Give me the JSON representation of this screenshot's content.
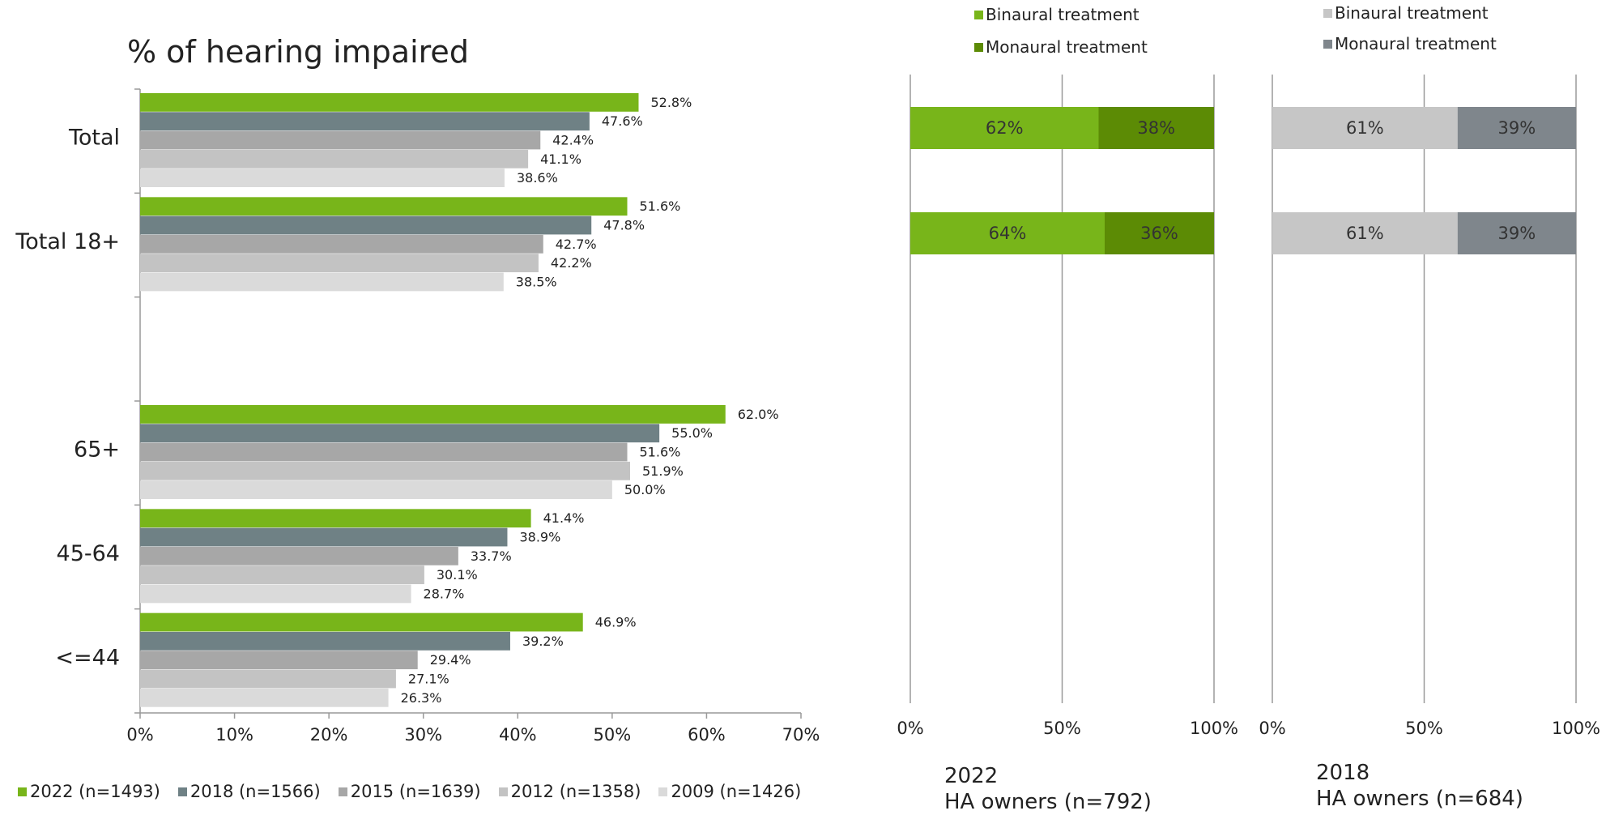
{
  "page": {
    "title": "% of hearing impaired"
  },
  "colors": {
    "s2022": "#78b51a",
    "s2018": "#6f8185",
    "s2015": "#a7a7a7",
    "s2012": "#c3c3c3",
    "s2009": "#dadada",
    "binaural2022": "#78b51a",
    "monaural2022": "#5c8b05",
    "binaural2018": "#c6c6c6",
    "monaural2018": "#7f868c",
    "axis": "#999999",
    "grid": "#9a9a9a"
  },
  "chart_data": [
    {
      "type": "bar",
      "orientation": "horizontal",
      "title": "% of hearing impaired",
      "categories": [
        "Total",
        "Total 18+",
        "",
        "65+",
        "45-64",
        "<=44"
      ],
      "xlim": [
        0,
        70
      ],
      "xticks": [
        "0%",
        "10%",
        "20%",
        "30%",
        "40%",
        "50%",
        "60%",
        "70%"
      ],
      "legend_position": "bottom",
      "series": [
        {
          "name": "2022 (n=1493)",
          "values": [
            52.8,
            51.6,
            null,
            62.0,
            41.4,
            46.9
          ],
          "labels": [
            "52.8%",
            "51.6%",
            "",
            "62.0%",
            "41.4%",
            "46.9%"
          ]
        },
        {
          "name": "2018 (n=1566)",
          "values": [
            47.6,
            47.8,
            null,
            55.0,
            38.9,
            39.2
          ],
          "labels": [
            "47.6%",
            "47.8%",
            "",
            "55.0%",
            "38.9%",
            "39.2%"
          ]
        },
        {
          "name": "2015 (n=1639)",
          "values": [
            42.4,
            42.7,
            null,
            51.6,
            33.7,
            29.4
          ],
          "labels": [
            "42.4%",
            "42.7%",
            "",
            "51.6%",
            "33.7%",
            "29.4%"
          ]
        },
        {
          "name": "2012 (n=1358)",
          "values": [
            41.1,
            42.2,
            null,
            51.9,
            30.1,
            27.1
          ],
          "labels": [
            "41.1%",
            "42.2%",
            "",
            "51.9%",
            "30.1%",
            "27.1%"
          ]
        },
        {
          "name": "2009 (n=1426)",
          "values": [
            38.6,
            38.5,
            null,
            50.0,
            28.7,
            26.3
          ],
          "labels": [
            "38.6%",
            "38.5%",
            "",
            "50.0%",
            "28.7%",
            "26.3%"
          ]
        }
      ]
    },
    {
      "type": "bar",
      "stacked": true,
      "orientation": "horizontal",
      "caption_year": "2022",
      "caption_group": "HA owners (n=792)",
      "xlim": [
        0,
        100
      ],
      "xticks": [
        "0%",
        "50%",
        "100%"
      ],
      "legend_position": "top",
      "rows": 2,
      "series": [
        {
          "name": "Binaural treatment",
          "values": [
            62,
            64
          ],
          "labels": [
            "62%",
            "64%"
          ]
        },
        {
          "name": "Monaural treatment",
          "values": [
            38,
            36
          ],
          "labels": [
            "38%",
            "36%"
          ]
        }
      ]
    },
    {
      "type": "bar",
      "stacked": true,
      "orientation": "horizontal",
      "caption_year": "2018",
      "caption_group": "HA owners (n=684)",
      "xlim": [
        0,
        100
      ],
      "xticks": [
        "0%",
        "50%",
        "100%"
      ],
      "legend_position": "top",
      "rows": 2,
      "series": [
        {
          "name": "Binaural treatment",
          "values": [
            61,
            61
          ],
          "labels": [
            "61%",
            "61%"
          ]
        },
        {
          "name": "Monaural treatment",
          "values": [
            39,
            39
          ],
          "labels": [
            "39%",
            "39%"
          ]
        }
      ]
    }
  ]
}
